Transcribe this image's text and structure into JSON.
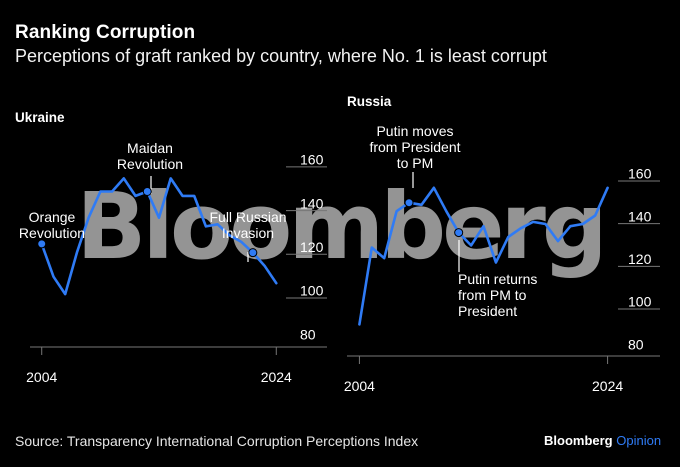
{
  "header": {
    "title": "Ranking Corruption",
    "subtitle": "Perceptions of graft ranked by country, where No. 1 is least corrupt"
  },
  "footer": {
    "source": "Source: Transparency International Corruption Perceptions Index",
    "brand": "Bloomberg",
    "brand_suffix": "Opinion"
  },
  "watermark": "Bloomberg",
  "colors": {
    "background": "#000000",
    "line": "#2f7bf5",
    "text": "#ffffff",
    "axis": "#777777"
  },
  "chart_data": [
    {
      "type": "line",
      "title": "Ukraine",
      "xlabel": "",
      "ylabel": "",
      "x": [
        2004,
        2005,
        2006,
        2007,
        2008,
        2009,
        2010,
        2011,
        2012,
        2013,
        2014,
        2015,
        2016,
        2017,
        2018,
        2019,
        2020,
        2021,
        2022,
        2023,
        2024
      ],
      "values": [
        122,
        107,
        99,
        118,
        134,
        146,
        146,
        152,
        144,
        146,
        134,
        152,
        144,
        144,
        130,
        131,
        126,
        123,
        118,
        112,
        104
      ],
      "xticks": [
        "2004",
        "2024"
      ],
      "yticks": [
        80,
        100,
        120,
        140,
        160
      ],
      "ylim": [
        78,
        165
      ],
      "xlim": [
        2003,
        2025
      ],
      "grid": true,
      "annotations": [
        {
          "year": 2004,
          "label": "Orange Revolution",
          "lines": [
            "Orange",
            "Revolution"
          ]
        },
        {
          "year": 2013,
          "label": "Maidan Revolution",
          "lines": [
            "Maidan",
            "Revolution"
          ]
        },
        {
          "year": 2022,
          "label": "Full Russian Invasion",
          "lines": [
            "Full Russian",
            "Invasion"
          ]
        }
      ]
    },
    {
      "type": "line",
      "title": "Russia",
      "xlabel": "",
      "ylabel": "",
      "x": [
        2004,
        2005,
        2006,
        2007,
        2008,
        2009,
        2010,
        2011,
        2012,
        2013,
        2014,
        2015,
        2016,
        2017,
        2018,
        2019,
        2020,
        2021,
        2022,
        2023,
        2024
      ],
      "values": [
        90,
        126,
        121,
        143,
        147,
        146,
        154,
        143,
        133,
        127,
        136,
        119,
        131,
        135,
        138,
        137,
        129,
        136,
        137,
        141,
        154
      ],
      "xticks": [
        "2004",
        "2024"
      ],
      "yticks": [
        80,
        100,
        120,
        140,
        160
      ],
      "ylim": [
        78,
        167
      ],
      "xlim": [
        2003,
        2025
      ],
      "grid": true,
      "annotations": [
        {
          "year": 2008,
          "label": "Putin moves from President to PM",
          "lines": [
            "Putin moves",
            "from President",
            "to PM"
          ]
        },
        {
          "year": 2012,
          "label": "Putin returns from PM to President",
          "lines": [
            "Putin returns",
            "from PM to",
            "President"
          ]
        }
      ]
    }
  ]
}
